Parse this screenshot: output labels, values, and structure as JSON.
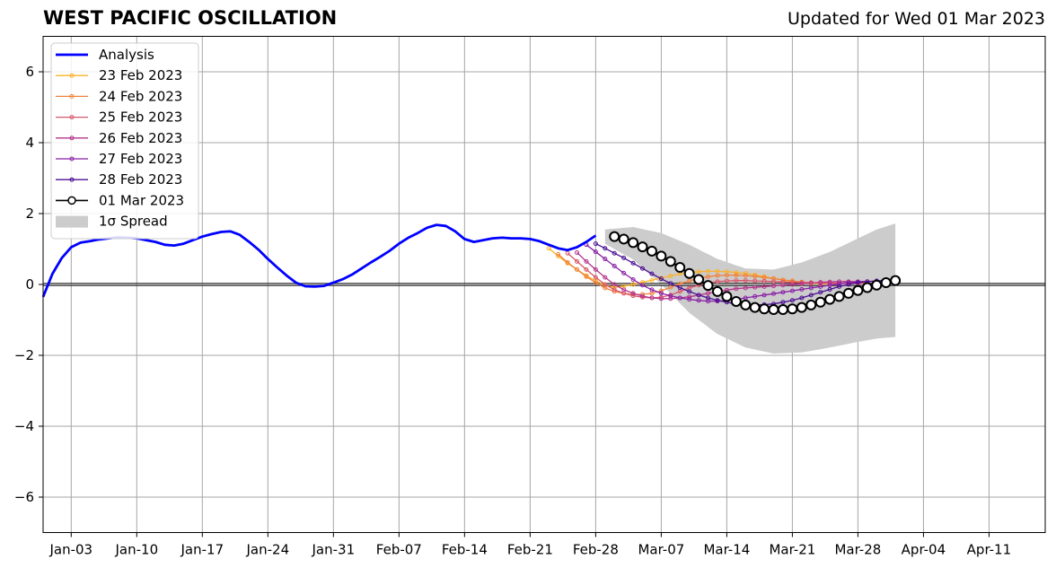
{
  "chart_data": {
    "type": "line",
    "title": "WEST PACIFIC OSCILLATION",
    "subtitle": "Updated for Wed 01 Mar 2023",
    "x_tick_labels": [
      "Jan-03",
      "Jan-10",
      "Jan-17",
      "Jan-24",
      "Jan-31",
      "Feb-07",
      "Feb-14",
      "Feb-21",
      "Feb-28",
      "Mar-07",
      "Mar-14",
      "Mar-21",
      "Mar-28",
      "Apr-04",
      "Apr-11"
    ],
    "x_tick_dates": [
      "2023-01-03",
      "2023-01-10",
      "2023-01-17",
      "2023-01-24",
      "2023-01-31",
      "2023-02-07",
      "2023-02-14",
      "2023-02-21",
      "2023-02-28",
      "2023-03-07",
      "2023-03-14",
      "2023-03-21",
      "2023-03-28",
      "2023-04-04",
      "2023-04-11"
    ],
    "x_range": [
      "2022-12-31",
      "2023-04-17"
    ],
    "ylim": [
      -7,
      7
    ],
    "y_ticks": [
      -6,
      -4,
      -2,
      0,
      2,
      4,
      6
    ],
    "y_tick_labels": [
      "−6",
      "−4",
      "−2",
      "0",
      "2",
      "4",
      "6"
    ],
    "grid": true,
    "legend_placement": "top-left",
    "analysis": {
      "name": "Analysis",
      "color": "#0000ff",
      "points": [
        [
          "2022-12-31",
          -0.35
        ],
        [
          "2023-01-01",
          0.3
        ],
        [
          "2023-01-02",
          0.75
        ],
        [
          "2023-01-03",
          1.05
        ],
        [
          "2023-01-04",
          1.18
        ],
        [
          "2023-01-05",
          1.22
        ],
        [
          "2023-01-06",
          1.27
        ],
        [
          "2023-01-07",
          1.3
        ],
        [
          "2023-01-08",
          1.33
        ],
        [
          "2023-01-09",
          1.32
        ],
        [
          "2023-01-10",
          1.3
        ],
        [
          "2023-01-11",
          1.25
        ],
        [
          "2023-01-12",
          1.2
        ],
        [
          "2023-01-13",
          1.12
        ],
        [
          "2023-01-14",
          1.1
        ],
        [
          "2023-01-15",
          1.15
        ],
        [
          "2023-01-16",
          1.25
        ],
        [
          "2023-01-17",
          1.35
        ],
        [
          "2023-01-18",
          1.42
        ],
        [
          "2023-01-19",
          1.48
        ],
        [
          "2023-01-20",
          1.5
        ],
        [
          "2023-01-21",
          1.4
        ],
        [
          "2023-01-22",
          1.2
        ],
        [
          "2023-01-23",
          0.98
        ],
        [
          "2023-01-24",
          0.72
        ],
        [
          "2023-01-25",
          0.48
        ],
        [
          "2023-01-26",
          0.25
        ],
        [
          "2023-01-27",
          0.05
        ],
        [
          "2023-01-28",
          -0.05
        ],
        [
          "2023-01-29",
          -0.06
        ],
        [
          "2023-01-30",
          -0.04
        ],
        [
          "2023-01-31",
          0.05
        ],
        [
          "2023-02-01",
          0.15
        ],
        [
          "2023-02-02",
          0.28
        ],
        [
          "2023-02-03",
          0.45
        ],
        [
          "2023-02-04",
          0.62
        ],
        [
          "2023-02-05",
          0.78
        ],
        [
          "2023-02-06",
          0.95
        ],
        [
          "2023-02-07",
          1.15
        ],
        [
          "2023-02-08",
          1.32
        ],
        [
          "2023-02-09",
          1.45
        ],
        [
          "2023-02-10",
          1.6
        ],
        [
          "2023-02-11",
          1.68
        ],
        [
          "2023-02-12",
          1.65
        ],
        [
          "2023-02-13",
          1.5
        ],
        [
          "2023-02-14",
          1.28
        ],
        [
          "2023-02-15",
          1.2
        ],
        [
          "2023-02-16",
          1.25
        ],
        [
          "2023-02-17",
          1.3
        ],
        [
          "2023-02-18",
          1.32
        ],
        [
          "2023-02-19",
          1.3
        ],
        [
          "2023-02-20",
          1.3
        ],
        [
          "2023-02-21",
          1.28
        ],
        [
          "2023-02-22",
          1.22
        ],
        [
          "2023-02-23",
          1.12
        ],
        [
          "2023-02-24",
          1.02
        ],
        [
          "2023-02-25",
          0.97
        ],
        [
          "2023-02-26",
          1.05
        ],
        [
          "2023-02-27",
          1.2
        ],
        [
          "2023-02-28",
          1.38
        ]
      ]
    },
    "forecasts": [
      {
        "name": "23 Feb 2023",
        "color": "#fbb22a",
        "marker_size": 2,
        "start": "2023-02-23",
        "values": [
          1.02,
          0.8,
          0.6,
          0.42,
          0.25,
          0.1,
          -0.02,
          -0.08,
          -0.05,
          0.0,
          0.06,
          0.12,
          0.18,
          0.24,
          0.3,
          0.34,
          0.36,
          0.37,
          0.37,
          0.36,
          0.34,
          0.31,
          0.27,
          0.22,
          0.17,
          0.12,
          0.08,
          0.05,
          0.03,
          0.02,
          0.02,
          0.03,
          0.04,
          0.05,
          0.06
        ]
      },
      {
        "name": "24 Feb 2023",
        "color": "#f0813c",
        "marker_size": 2,
        "start": "2023-02-24",
        "values": [
          0.85,
          0.62,
          0.42,
          0.22,
          0.05,
          -0.1,
          -0.2,
          -0.25,
          -0.28,
          -0.28,
          -0.25,
          -0.18,
          -0.08,
          0.02,
          0.1,
          0.17,
          0.22,
          0.25,
          0.26,
          0.26,
          0.25,
          0.23,
          0.2,
          0.17,
          0.13,
          0.1,
          0.07,
          0.05,
          0.03,
          0.03,
          0.03,
          0.04,
          0.05
        ]
      },
      {
        "name": "25 Feb 2023",
        "color": "#d9566a",
        "marker_size": 2,
        "start": "2023-02-25",
        "values": [
          0.88,
          0.65,
          0.42,
          0.2,
          0.0,
          -0.15,
          -0.25,
          -0.32,
          -0.36,
          -0.38,
          -0.36,
          -0.3,
          -0.2,
          -0.1,
          -0.02,
          0.04,
          0.08,
          0.1,
          0.11,
          0.11,
          0.1,
          0.09,
          0.08,
          0.07,
          0.06,
          0.05,
          0.05,
          0.04,
          0.04,
          0.03,
          0.03,
          0.03,
          0.03
        ]
      },
      {
        "name": "26 Feb 2023",
        "color": "#b5348c",
        "marker_size": 2,
        "start": "2023-02-26",
        "values": [
          0.9,
          0.65,
          0.42,
          0.2,
          0.0,
          -0.15,
          -0.25,
          -0.33,
          -0.38,
          -0.4,
          -0.4,
          -0.38,
          -0.35,
          -0.3,
          -0.25,
          -0.2,
          -0.16,
          -0.12,
          -0.1,
          -0.08,
          -0.06,
          -0.04,
          -0.02,
          0.0,
          0.02,
          0.04,
          0.06,
          0.07,
          0.08,
          0.08,
          0.08,
          0.08
        ]
      },
      {
        "name": "27 Feb 2023",
        "color": "#8a1fa6",
        "marker_size": 2,
        "start": "2023-02-27",
        "values": [
          1.12,
          0.92,
          0.72,
          0.52,
          0.32,
          0.14,
          -0.02,
          -0.15,
          -0.25,
          -0.32,
          -0.38,
          -0.42,
          -0.45,
          -0.47,
          -0.47,
          -0.45,
          -0.42,
          -0.38,
          -0.34,
          -0.3,
          -0.26,
          -0.22,
          -0.18,
          -0.14,
          -0.1,
          -0.06,
          -0.02,
          0.02,
          0.05,
          0.07,
          0.08,
          0.09
        ]
      },
      {
        "name": "28 Feb 2023",
        "color": "#4b0f92",
        "marker_size": 2,
        "start": "2023-02-28",
        "values": [
          1.15,
          1.02,
          0.88,
          0.75,
          0.6,
          0.45,
          0.3,
          0.16,
          0.03,
          -0.09,
          -0.2,
          -0.3,
          -0.38,
          -0.45,
          -0.5,
          -0.55,
          -0.57,
          -0.58,
          -0.57,
          -0.55,
          -0.5,
          -0.45,
          -0.38,
          -0.3,
          -0.22,
          -0.14,
          -0.06,
          0.0,
          0.05,
          0.08,
          0.1,
          0.12
        ]
      },
      {
        "name": "01 Mar 2023",
        "color": "#000000",
        "marker_size": 5,
        "filled": false,
        "start": "2023-03-02",
        "values": [
          1.35,
          1.28,
          1.18,
          1.06,
          0.94,
          0.8,
          0.65,
          0.48,
          0.31,
          0.14,
          -0.03,
          -0.2,
          -0.34,
          -0.48,
          -0.58,
          -0.65,
          -0.69,
          -0.71,
          -0.71,
          -0.69,
          -0.65,
          -0.58,
          -0.5,
          -0.42,
          -0.34,
          -0.25,
          -0.17,
          -0.09,
          -0.02,
          0.05,
          0.11
        ]
      }
    ],
    "spread": {
      "label": "1σ Spread",
      "color": "#cccccc",
      "start": "2023-03-01",
      "end": "2023-04-01",
      "upper": [
        [
          0,
          1.55
        ],
        [
          3,
          1.62
        ],
        [
          6,
          1.45
        ],
        [
          9,
          1.12
        ],
        [
          12,
          0.72
        ],
        [
          15,
          0.45
        ],
        [
          18,
          0.42
        ],
        [
          21,
          0.62
        ],
        [
          24,
          0.92
        ],
        [
          27,
          1.3
        ],
        [
          29,
          1.55
        ],
        [
          31,
          1.72
        ]
      ],
      "lower": [
        [
          0,
          1.15
        ],
        [
          3,
          0.7
        ],
        [
          6,
          0.0
        ],
        [
          9,
          -0.8
        ],
        [
          12,
          -1.4
        ],
        [
          15,
          -1.78
        ],
        [
          18,
          -1.95
        ],
        [
          21,
          -1.92
        ],
        [
          24,
          -1.78
        ],
        [
          27,
          -1.62
        ],
        [
          29,
          -1.53
        ],
        [
          31,
          -1.48
        ]
      ]
    }
  }
}
